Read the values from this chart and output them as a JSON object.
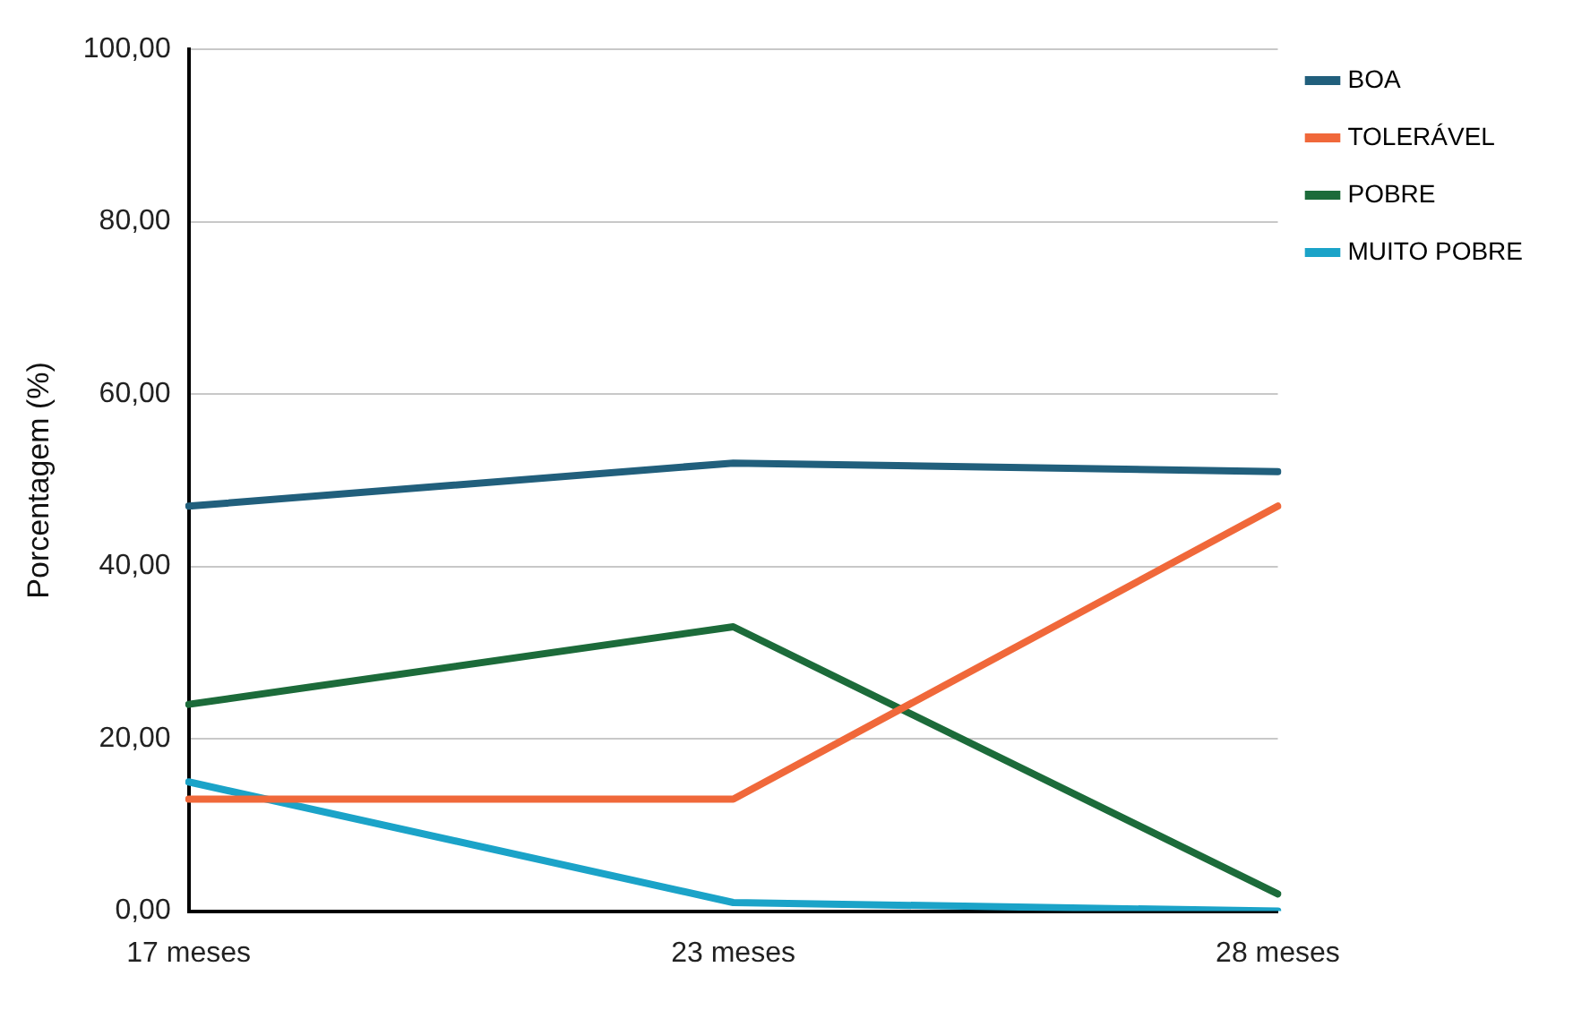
{
  "chart_data": {
    "type": "line",
    "ylabel": "Porcentagem (%)",
    "categories": [
      "17 meses",
      "23 meses",
      "28 meses"
    ],
    "series": [
      {
        "name": "BOA",
        "color": "#215f7c",
        "values": [
          47,
          52,
          51
        ]
      },
      {
        "name": "TOLERÁVEL",
        "color": "#f0683a",
        "values": [
          13,
          13,
          47
        ]
      },
      {
        "name": "POBRE",
        "color": "#1c6b3a",
        "values": [
          24,
          33,
          2
        ]
      },
      {
        "name": "MUITO POBRE",
        "color": "#1ba3c8",
        "values": [
          15,
          1,
          0
        ]
      }
    ],
    "ylim": [
      0,
      100
    ],
    "yticks": [
      {
        "value": 0,
        "label": "0,00"
      },
      {
        "value": 20,
        "label": "20,00"
      },
      {
        "value": 40,
        "label": "40,00"
      },
      {
        "value": 60,
        "label": "60,00"
      },
      {
        "value": 80,
        "label": "80,00"
      },
      {
        "value": 100,
        "label": "100,00"
      }
    ],
    "grid": "y",
    "legend": "right",
    "marker": "none",
    "line_style": "solid"
  }
}
